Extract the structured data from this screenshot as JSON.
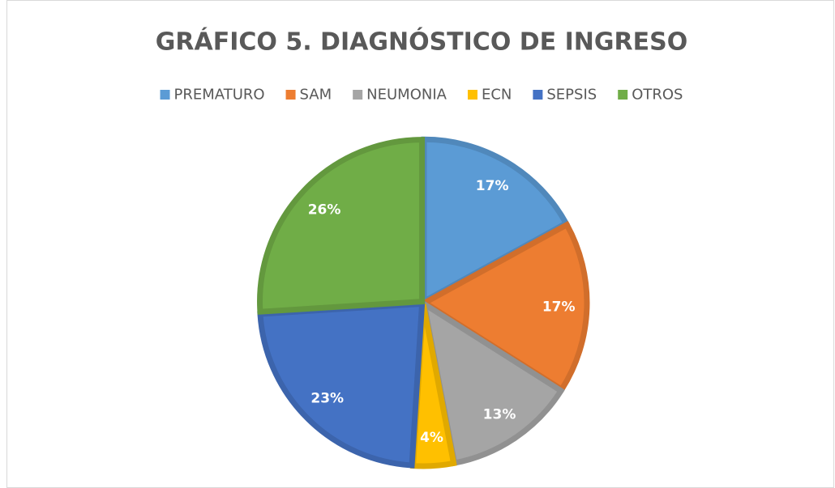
{
  "chart_data": {
    "type": "pie",
    "title": "GRÁFICO 5. DIAGNÓSTICO DE INGRESO",
    "categories": [
      "PREMATURO",
      "SAM",
      "NEUMONIA",
      "ECN",
      "SEPSIS",
      "OTROS"
    ],
    "values": [
      17,
      17,
      13,
      4,
      23,
      26
    ],
    "value_labels": [
      "17%",
      "17%",
      "13%",
      "4%",
      "23%",
      "26%"
    ],
    "colors": [
      "#5b9bd5",
      "#ed7d31",
      "#a5a5a5",
      "#ffc000",
      "#4472c4",
      "#70ad47"
    ],
    "legend": "top"
  }
}
